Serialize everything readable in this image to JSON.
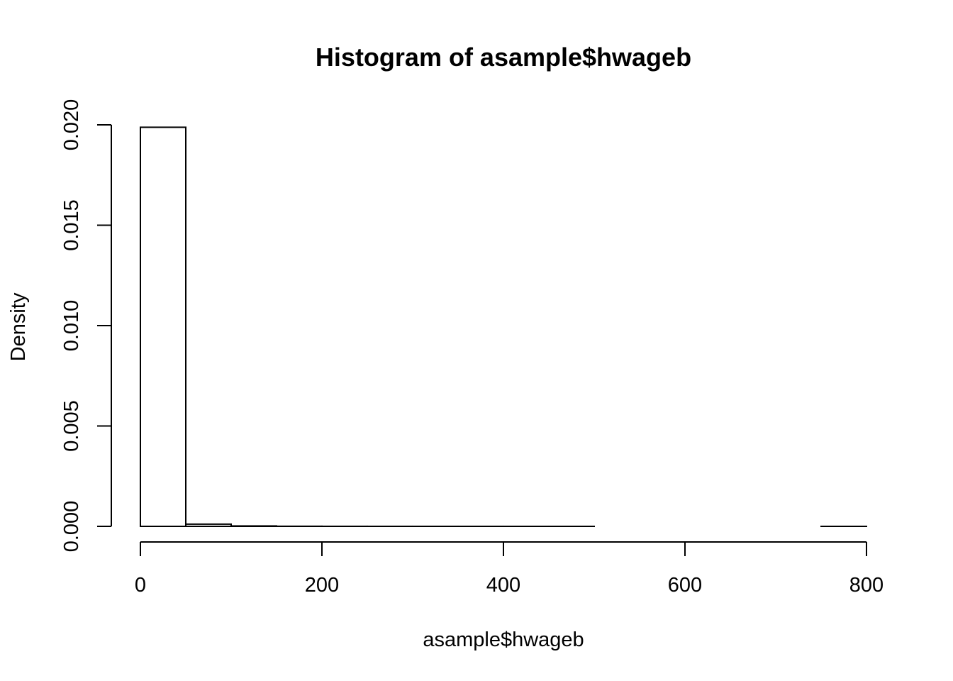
{
  "chart_data": {
    "type": "bar",
    "subtype": "histogram",
    "title": "Histogram of asample$hwageb",
    "xlabel": "asample$hwageb",
    "ylabel": "Density",
    "xlim": [
      0,
      800
    ],
    "ylim": [
      0,
      0.02
    ],
    "x_ticks": [
      0,
      200,
      400,
      600,
      800
    ],
    "x_tick_labels": [
      "0",
      "200",
      "400",
      "600",
      "800"
    ],
    "y_ticks": [
      0,
      0.005,
      0.01,
      0.015,
      0.02
    ],
    "y_tick_labels": [
      "0.000",
      "0.005",
      "0.010",
      "0.015",
      "0.020"
    ],
    "bin_width": 50,
    "bins": [
      {
        "start": 0,
        "end": 50,
        "density": 0.01988
      },
      {
        "start": 50,
        "end": 100,
        "density": 0.00011
      },
      {
        "start": 100,
        "end": 150,
        "density": 2e-05
      },
      {
        "start": 150,
        "end": 200,
        "density": 5e-06
      },
      {
        "start": 200,
        "end": 250,
        "density": 2e-06
      },
      {
        "start": 250,
        "end": 300,
        "density": 1e-06
      },
      {
        "start": 300,
        "end": 350,
        "density": 5e-07
      },
      {
        "start": 350,
        "end": 400,
        "density": 3e-07
      },
      {
        "start": 400,
        "end": 450,
        "density": 2e-07
      },
      {
        "start": 450,
        "end": 500,
        "density": 1e-07
      },
      {
        "start": 500,
        "end": 550,
        "density": 0
      },
      {
        "start": 550,
        "end": 600,
        "density": 0
      },
      {
        "start": 600,
        "end": 650,
        "density": 0
      },
      {
        "start": 650,
        "end": 700,
        "density": 0
      },
      {
        "start": 700,
        "end": 750,
        "density": 0
      },
      {
        "start": 750,
        "end": 800,
        "density": 1e-07
      }
    ],
    "grid": false,
    "legend": "none",
    "colors": {
      "bar_fill": "#ffffff",
      "bar_stroke": "#000000",
      "background": "#ffffff"
    }
  }
}
